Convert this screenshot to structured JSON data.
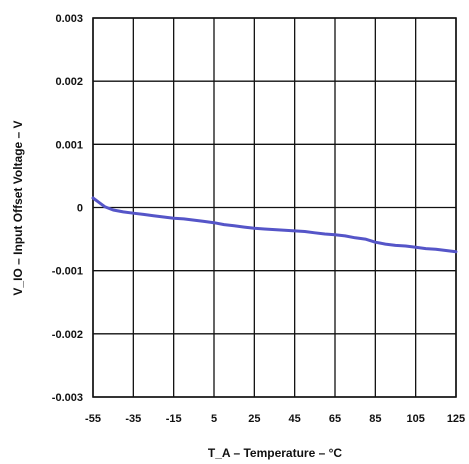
{
  "chart_data": {
    "type": "line",
    "xlabel": "T_A – Temperature – °C",
    "ylabel": "V_IO – Input Offset Voltage – V",
    "xlim": [
      -55,
      125
    ],
    "ylim": [
      -0.003,
      0.003
    ],
    "xticks": [
      "-55",
      "-35",
      "-15",
      "5",
      "25",
      "45",
      "65",
      "85",
      "105",
      "125"
    ],
    "yticks": [
      "0.003",
      "0.002",
      "0.001",
      "0",
      "-0.001",
      "-0.002",
      "-0.003"
    ],
    "grid": true,
    "line_color": "#5555c8",
    "series": [
      {
        "x": [
          -55,
          -52,
          -49,
          -45,
          -40,
          -35,
          -30,
          -25,
          -20,
          -15,
          -10,
          -5,
          0,
          5,
          10,
          15,
          20,
          25,
          30,
          35,
          40,
          45,
          50,
          55,
          60,
          65,
          70,
          75,
          80,
          85,
          90,
          95,
          100,
          105,
          110,
          115,
          120,
          125
        ],
        "y": [
          0.00015,
          8e-05,
          1e-05,
          -4e-05,
          -7e-05,
          -9e-05,
          -0.00011,
          -0.00013,
          -0.00015,
          -0.00017,
          -0.00018,
          -0.0002,
          -0.00022,
          -0.00024,
          -0.00027,
          -0.00029,
          -0.00031,
          -0.00033,
          -0.00034,
          -0.00035,
          -0.00036,
          -0.00037,
          -0.00038,
          -0.0004,
          -0.00042,
          -0.00043,
          -0.00045,
          -0.00048,
          -0.0005,
          -0.00055,
          -0.00058,
          -0.0006,
          -0.00061,
          -0.00063,
          -0.00065,
          -0.00066,
          -0.00068,
          -0.0007
        ]
      }
    ]
  }
}
